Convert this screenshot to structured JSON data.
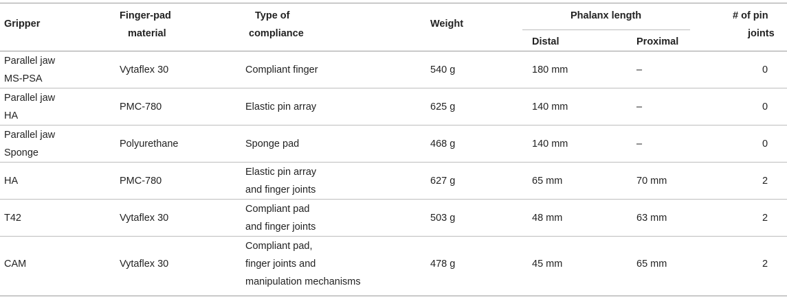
{
  "header": {
    "gripper": "Gripper",
    "finger_pad_1": "Finger-pad",
    "finger_pad_2": "material",
    "compliance_1": "Type of",
    "compliance_2": "compliance",
    "weight": "Weight",
    "phalanx": "Phalanx length",
    "distal": "Distal",
    "proximal": "Proximal",
    "pins_1": "# of pin",
    "pins_2": "joints"
  },
  "rows": [
    {
      "gripper": [
        "Parallel jaw",
        "MS-PSA"
      ],
      "material": "Vytaflex 30",
      "compliance": [
        "Compliant finger"
      ],
      "weight": "540 g",
      "distal": "180 mm",
      "proximal": "–",
      "pins": "0"
    },
    {
      "gripper": [
        "Parallel jaw",
        "HA"
      ],
      "material": "PMC-780",
      "compliance": [
        "Elastic pin array"
      ],
      "weight": "625 g",
      "distal": "140 mm",
      "proximal": "–",
      "pins": "0"
    },
    {
      "gripper": [
        "Parallel jaw",
        "Sponge"
      ],
      "material": "Polyurethane",
      "compliance": [
        "Sponge pad"
      ],
      "weight": "468 g",
      "distal": "140 mm",
      "proximal": "–",
      "pins": "0"
    },
    {
      "gripper": [
        "HA"
      ],
      "material": "PMC-780",
      "compliance": [
        "Elastic pin array",
        "and finger joints"
      ],
      "weight": "627 g",
      "distal": "65 mm",
      "proximal": "70 mm",
      "pins": "2"
    },
    {
      "gripper": [
        "T42"
      ],
      "material": "Vytaflex 30",
      "compliance": [
        "Compliant pad",
        "and finger joints"
      ],
      "weight": "503 g",
      "distal": "48 mm",
      "proximal": "63 mm",
      "pins": "2"
    },
    {
      "gripper": [
        "CAM"
      ],
      "material": "Vytaflex 30",
      "compliance": [
        "Compliant pad,",
        "finger joints and",
        "manipulation mechanisms"
      ],
      "weight": "478 g",
      "distal": "45 mm",
      "proximal": "65 mm",
      "pins": "2"
    }
  ]
}
